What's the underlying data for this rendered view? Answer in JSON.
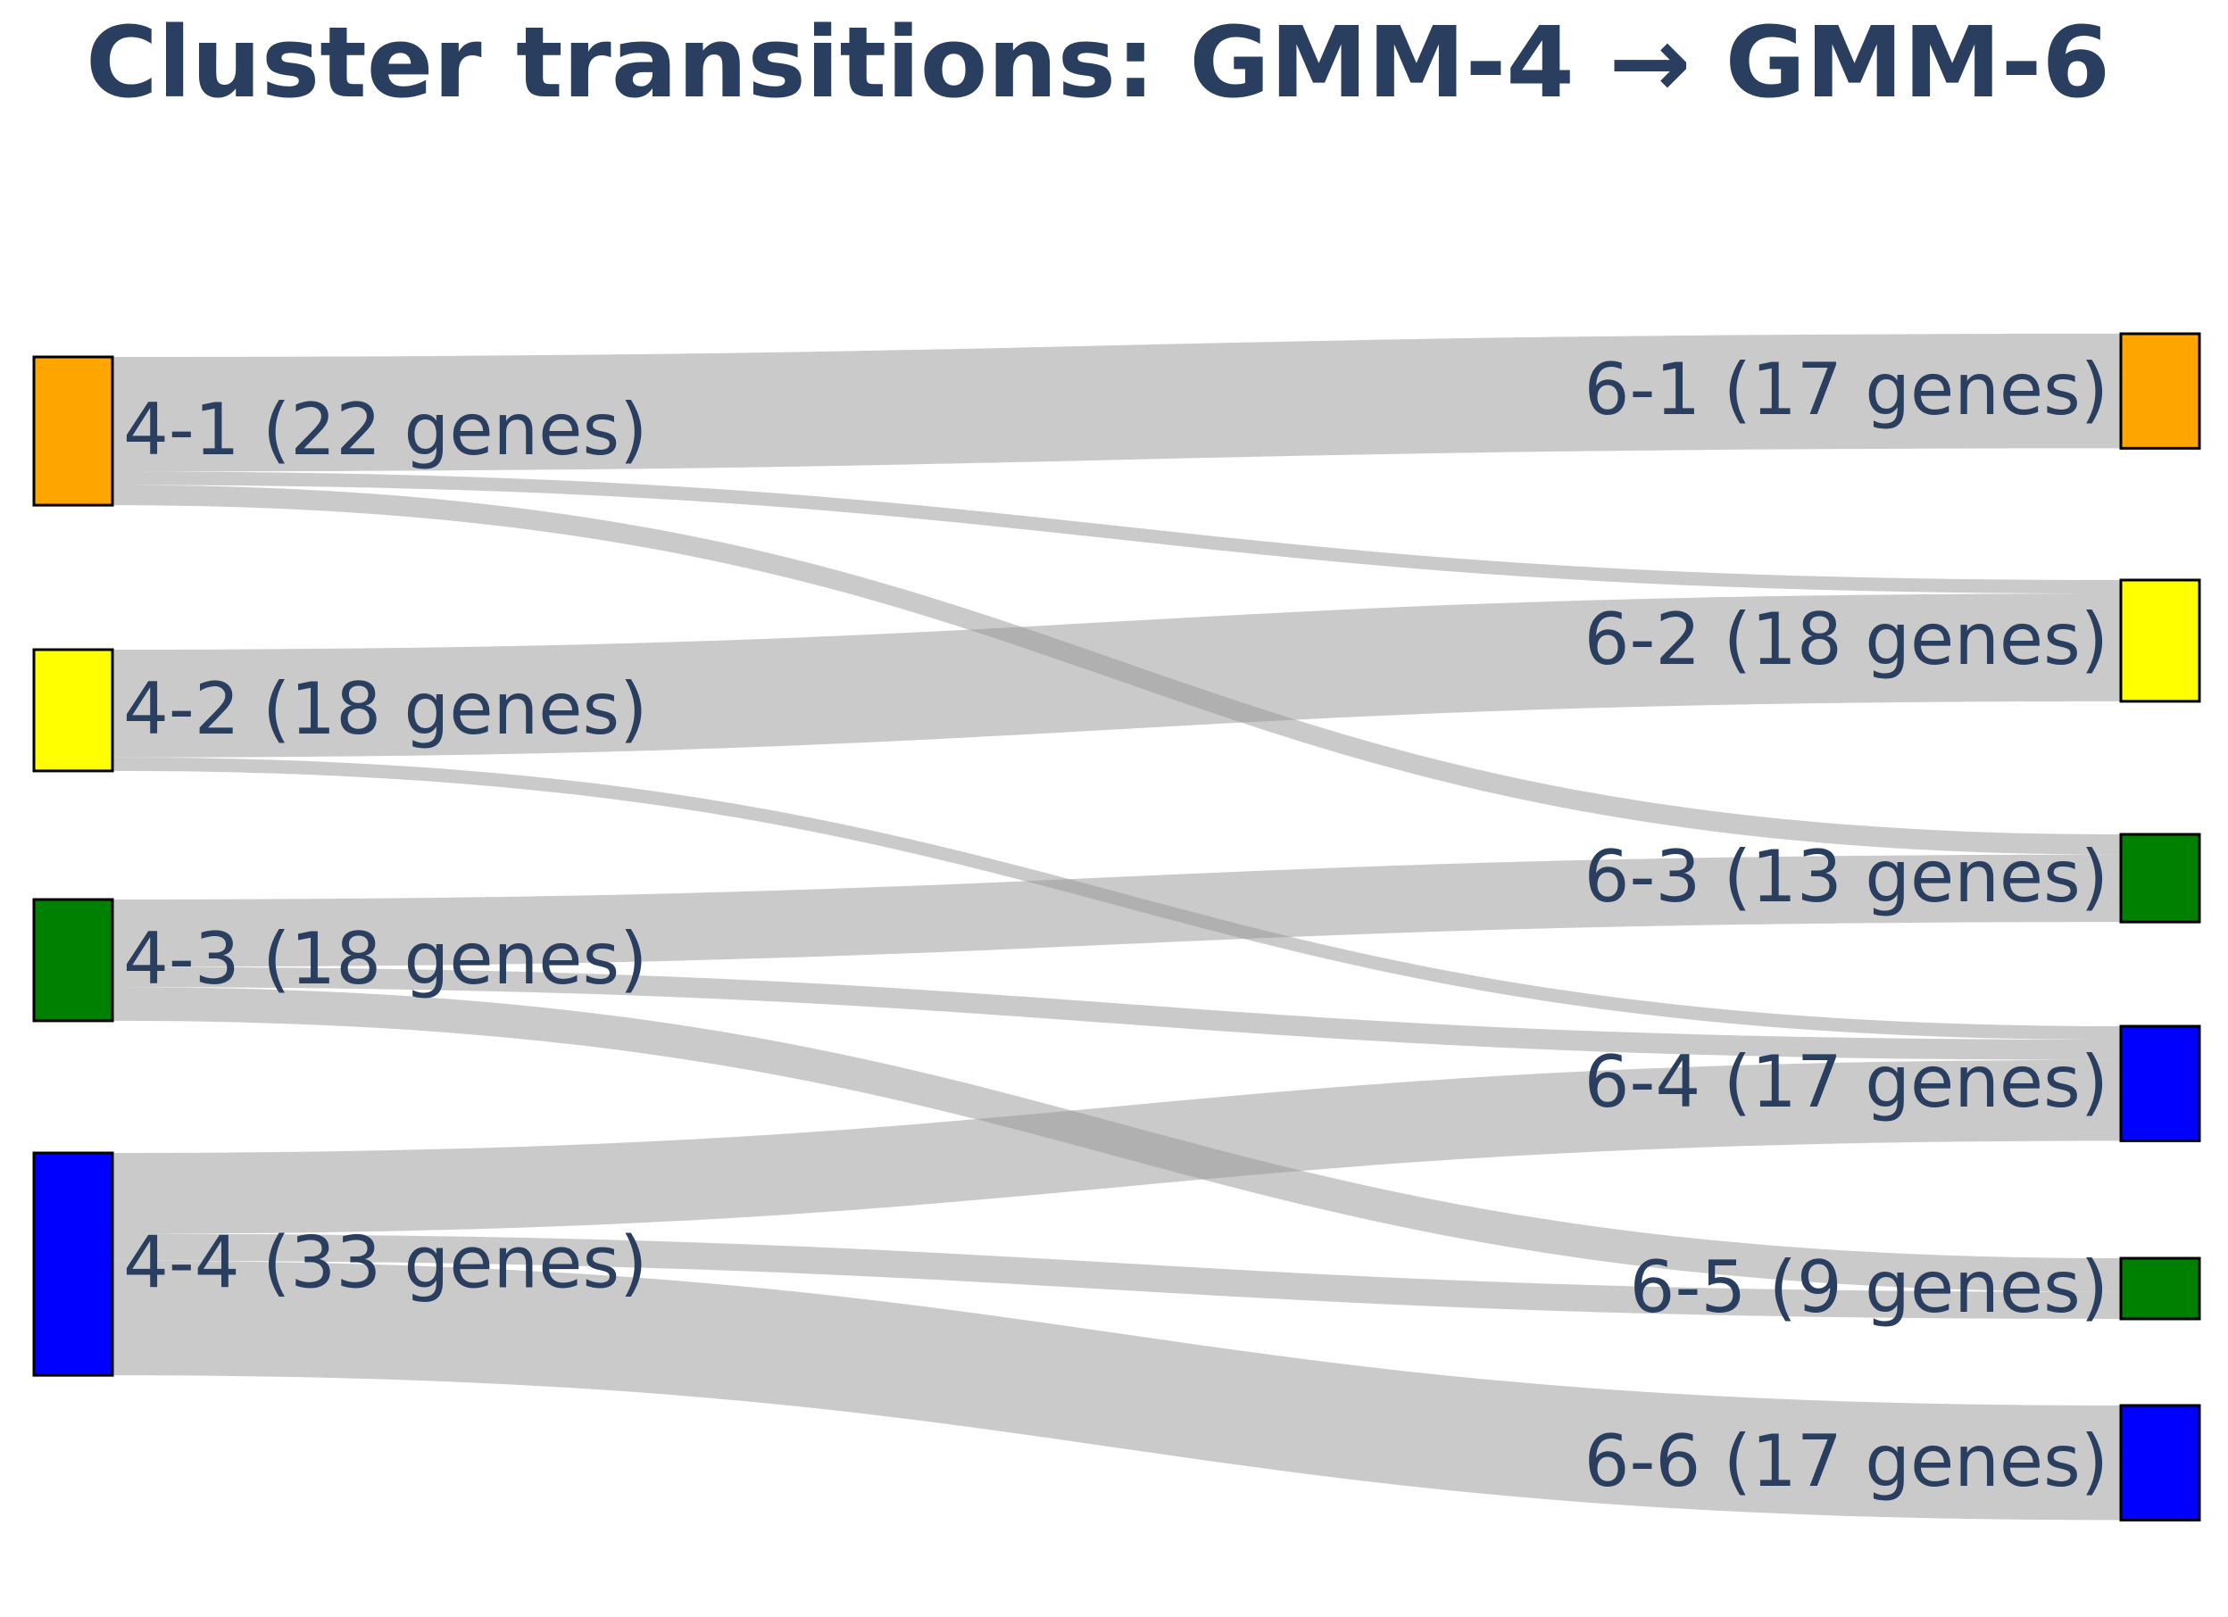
{
  "title": "Cluster transitions: GMM-4 → GMM-6",
  "chart_data": {
    "type": "sankey",
    "title": "Cluster transitions: GMM-4 → GMM-6",
    "unit": "genes",
    "sources": [
      {
        "id": "4-1",
        "label": "4-1 (22 genes)",
        "value": 22,
        "color": "#FFA500"
      },
      {
        "id": "4-2",
        "label": "4-2 (18 genes)",
        "value": 18,
        "color": "#FFFF00"
      },
      {
        "id": "4-3",
        "label": "4-3 (18 genes)",
        "value": 18,
        "color": "#008000"
      },
      {
        "id": "4-4",
        "label": "4-4 (33 genes)",
        "value": 33,
        "color": "#0000FF"
      }
    ],
    "targets": [
      {
        "id": "6-1",
        "label": "6-1 (17 genes)",
        "value": 17,
        "color": "#FFA500"
      },
      {
        "id": "6-2",
        "label": "6-2 (18 genes)",
        "value": 18,
        "color": "#FFFF00"
      },
      {
        "id": "6-3",
        "label": "6-3 (13 genes)",
        "value": 13,
        "color": "#008000"
      },
      {
        "id": "6-4",
        "label": "6-4 (17 genes)",
        "value": 17,
        "color": "#0000FF"
      },
      {
        "id": "6-5",
        "label": "6-5 (9 genes)",
        "value": 9,
        "color": "#008000"
      },
      {
        "id": "6-6",
        "label": "6-6 (17 genes)",
        "value": 17,
        "color": "#0000FF"
      }
    ],
    "links": [
      {
        "source": "4-1",
        "target": "6-1",
        "value": 17
      },
      {
        "source": "4-1",
        "target": "6-2",
        "value": 2
      },
      {
        "source": "4-1",
        "target": "6-3",
        "value": 3
      },
      {
        "source": "4-2",
        "target": "6-2",
        "value": 16
      },
      {
        "source": "4-2",
        "target": "6-4",
        "value": 2
      },
      {
        "source": "4-3",
        "target": "6-3",
        "value": 10
      },
      {
        "source": "4-3",
        "target": "6-4",
        "value": 3
      },
      {
        "source": "4-3",
        "target": "6-5",
        "value": 5
      },
      {
        "source": "4-4",
        "target": "6-4",
        "value": 12
      },
      {
        "source": "4-4",
        "target": "6-5",
        "value": 4
      },
      {
        "source": "4-4",
        "target": "6-6",
        "value": 17
      }
    ]
  }
}
